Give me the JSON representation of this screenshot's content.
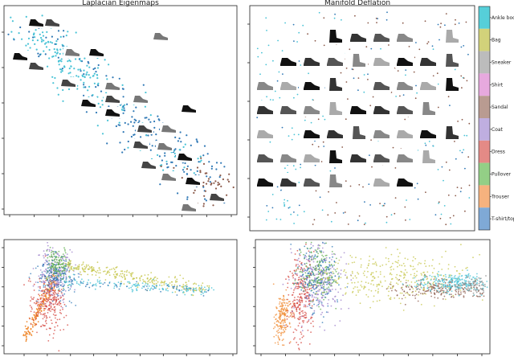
{
  "chart_data": [
    {
      "type": "scatter",
      "panel": "top-left",
      "title": "Laplacian Eigenmaps",
      "series_colors": {
        "Ankle boot": "#49c3d6",
        "Bag": "#c6c64a",
        "Sneaker": "#8a8a8a",
        "Shirt": "#e08fd6",
        "Sandal": "#8b5a4a",
        "Coat": "#9c7fc9",
        "Dress": "#d4463f",
        "Pullover": "#5fae4e",
        "Trouser": "#f08c34",
        "T-shirt/top": "#2f78b5"
      },
      "thumbnail_category": "footwear",
      "clusters": [
        {
          "class": "Ankle boot",
          "x": [
            0.05,
            0.45
          ],
          "y": [
            0.45,
            0.95
          ]
        },
        {
          "class": "T-shirt/top",
          "x": [
            0.35,
            0.9
          ],
          "y": [
            0.05,
            0.55
          ]
        },
        {
          "class": "Sandal",
          "x": [
            0.78,
            1.0
          ],
          "y": [
            0.0,
            0.25
          ]
        }
      ],
      "grid": false
    },
    {
      "type": "scatter",
      "panel": "top-right",
      "title": "Manifold Deflation",
      "thumbnail_category": "footwear",
      "grid": false
    },
    {
      "type": "scatter",
      "panel": "bottom-left",
      "title": "",
      "series": [
        {
          "name": "Bag",
          "center": [
            0.55,
            0.7
          ]
        },
        {
          "name": "Ankle boot",
          "center": [
            0.75,
            0.6
          ]
        },
        {
          "name": "Trouser",
          "center": [
            0.06,
            0.08
          ]
        },
        {
          "name": "Dress",
          "center": [
            0.15,
            0.45
          ]
        },
        {
          "name": "Coat",
          "center": [
            0.2,
            0.65
          ]
        },
        {
          "name": "T-shirt/top",
          "center": [
            0.22,
            0.6
          ]
        }
      ],
      "grid": false
    },
    {
      "type": "scatter",
      "panel": "bottom-right",
      "title": "",
      "series": [
        {
          "name": "Trouser",
          "center": [
            0.12,
            0.15
          ]
        },
        {
          "name": "Dress",
          "center": [
            0.2,
            0.4
          ]
        },
        {
          "name": "Coat",
          "center": [
            0.28,
            0.55
          ]
        },
        {
          "name": "Bag",
          "center": [
            0.55,
            0.7
          ]
        },
        {
          "name": "Ankle boot",
          "center": [
            0.85,
            0.55
          ]
        },
        {
          "name": "Sandal",
          "center": [
            0.8,
            0.45
          ]
        }
      ],
      "grid": false
    }
  ],
  "colorbar": {
    "labels": [
      "Ankle boot",
      "Bag",
      "Sneaker",
      "Shirt",
      "Sandal",
      "Coat",
      "Dress",
      "Pullover",
      "Trouser",
      "T-shirt/top"
    ],
    "colors": [
      "#56cfd9",
      "#d2d27a",
      "#bcbcbc",
      "#e7a9de",
      "#b99b91",
      "#bfaee0",
      "#e48a86",
      "#93cf86",
      "#f6b27e",
      "#7fa9d6"
    ]
  }
}
